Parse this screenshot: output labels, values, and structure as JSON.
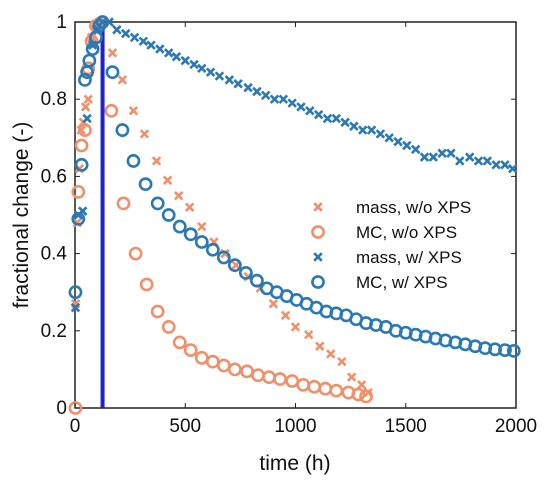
{
  "chart_data": {
    "type": "scatter",
    "title": "",
    "xlabel": "time (h)",
    "ylabel": "fractional change (-)",
    "xlim": [
      0,
      2000
    ],
    "ylim": [
      0,
      1
    ],
    "xticks": [
      0,
      500,
      1000,
      1500,
      2000
    ],
    "yticks": [
      0,
      0.2,
      0.4,
      0.6,
      0.8,
      1
    ],
    "xtick_labels": [
      "0",
      "500",
      "1000",
      "1500",
      "2000"
    ],
    "ytick_labels": [
      "0",
      "0.2",
      "0.4",
      "0.6",
      "0.8",
      "1"
    ],
    "grid": false,
    "legend_position": "center-right",
    "vertical_line": {
      "x": 125,
      "color": "#1f1fd6"
    },
    "series": [
      {
        "name": "mass, w/o XPS",
        "marker": "x",
        "color": "#f0906a",
        "points": [
          [
            3,
            0.27
          ],
          [
            10,
            0.48
          ],
          [
            20,
            0.62
          ],
          [
            28,
            0.72
          ],
          [
            38,
            0.74
          ],
          [
            48,
            0.78
          ],
          [
            60,
            0.8
          ],
          [
            75,
            0.96
          ],
          [
            92,
            0.98
          ],
          [
            110,
            1.0
          ],
          [
            170,
            0.92
          ],
          [
            215,
            0.85
          ],
          [
            265,
            0.77
          ],
          [
            315,
            0.71
          ],
          [
            370,
            0.64
          ],
          [
            420,
            0.59
          ],
          [
            470,
            0.55
          ],
          [
            520,
            0.52
          ],
          [
            575,
            0.47
          ],
          [
            630,
            0.43
          ],
          [
            680,
            0.4
          ],
          [
            730,
            0.37
          ],
          [
            785,
            0.34
          ],
          [
            840,
            0.31
          ],
          [
            900,
            0.27
          ],
          [
            955,
            0.24
          ],
          [
            1000,
            0.21
          ],
          [
            1060,
            0.19
          ],
          [
            1110,
            0.16
          ],
          [
            1160,
            0.14
          ],
          [
            1210,
            0.12
          ],
          [
            1255,
            0.08
          ],
          [
            1300,
            0.06
          ],
          [
            1330,
            0.04
          ]
        ]
      },
      {
        "name": "MC, w/o XPS",
        "marker": "o",
        "color": "#f0906a",
        "points": [
          [
            2,
            0.0
          ],
          [
            15,
            0.56
          ],
          [
            30,
            0.68
          ],
          [
            45,
            0.72
          ],
          [
            60,
            0.88
          ],
          [
            75,
            0.95
          ],
          [
            95,
            0.99
          ],
          [
            165,
            0.77
          ],
          [
            220,
            0.53
          ],
          [
            275,
            0.4
          ],
          [
            325,
            0.32
          ],
          [
            375,
            0.25
          ],
          [
            425,
            0.21
          ],
          [
            475,
            0.17
          ],
          [
            525,
            0.15
          ],
          [
            575,
            0.13
          ],
          [
            625,
            0.12
          ],
          [
            675,
            0.11
          ],
          [
            725,
            0.1
          ],
          [
            780,
            0.095
          ],
          [
            830,
            0.085
          ],
          [
            880,
            0.08
          ],
          [
            930,
            0.075
          ],
          [
            985,
            0.07
          ],
          [
            1035,
            0.06
          ],
          [
            1085,
            0.055
          ],
          [
            1135,
            0.05
          ],
          [
            1185,
            0.045
          ],
          [
            1240,
            0.04
          ],
          [
            1285,
            0.035
          ],
          [
            1320,
            0.03
          ]
        ]
      },
      {
        "name": "mass, w/ XPS",
        "marker": "x",
        "color": "#2a78b5",
        "points": [
          [
            2,
            0.26
          ],
          [
            15,
            0.5
          ],
          [
            35,
            0.51
          ],
          [
            55,
            0.75
          ],
          [
            80,
            0.94
          ],
          [
            105,
            0.98
          ],
          [
            125,
            1.0
          ],
          [
            155,
            1.0
          ],
          [
            190,
            0.98
          ],
          [
            230,
            0.97
          ],
          [
            270,
            0.96
          ],
          [
            310,
            0.95
          ],
          [
            345,
            0.94
          ],
          [
            385,
            0.93
          ],
          [
            425,
            0.92
          ],
          [
            460,
            0.91
          ],
          [
            500,
            0.9
          ],
          [
            540,
            0.89
          ],
          [
            575,
            0.88
          ],
          [
            615,
            0.87
          ],
          [
            655,
            0.86
          ],
          [
            700,
            0.85
          ],
          [
            740,
            0.84
          ],
          [
            785,
            0.83
          ],
          [
            825,
            0.82
          ],
          [
            865,
            0.81
          ],
          [
            905,
            0.8
          ],
          [
            945,
            0.8
          ],
          [
            985,
            0.79
          ],
          [
            1025,
            0.78
          ],
          [
            1065,
            0.77
          ],
          [
            1105,
            0.76
          ],
          [
            1145,
            0.75
          ],
          [
            1185,
            0.75
          ],
          [
            1225,
            0.74
          ],
          [
            1265,
            0.73
          ],
          [
            1305,
            0.72
          ],
          [
            1345,
            0.72
          ],
          [
            1385,
            0.71
          ],
          [
            1425,
            0.7
          ],
          [
            1465,
            0.69
          ],
          [
            1505,
            0.68
          ],
          [
            1545,
            0.67
          ],
          [
            1585,
            0.65
          ],
          [
            1625,
            0.65
          ],
          [
            1665,
            0.66
          ],
          [
            1705,
            0.66
          ],
          [
            1745,
            0.64
          ],
          [
            1790,
            0.65
          ],
          [
            1830,
            0.64
          ],
          [
            1870,
            0.64
          ],
          [
            1910,
            0.63
          ],
          [
            1950,
            0.63
          ],
          [
            1985,
            0.62
          ]
        ]
      },
      {
        "name": "MC, w/ XPS",
        "marker": "o",
        "color": "#2a78b5",
        "points": [
          [
            2,
            0.3
          ],
          [
            15,
            0.49
          ],
          [
            30,
            0.63
          ],
          [
            45,
            0.85
          ],
          [
            55,
            0.87
          ],
          [
            65,
            0.9
          ],
          [
            80,
            0.93
          ],
          [
            95,
            0.96
          ],
          [
            110,
            0.99
          ],
          [
            125,
            1.0
          ],
          [
            170,
            0.87
          ],
          [
            215,
            0.72
          ],
          [
            265,
            0.64
          ],
          [
            320,
            0.58
          ],
          [
            375,
            0.53
          ],
          [
            425,
            0.5
          ],
          [
            475,
            0.47
          ],
          [
            525,
            0.45
          ],
          [
            575,
            0.43
          ],
          [
            625,
            0.41
          ],
          [
            675,
            0.39
          ],
          [
            725,
            0.37
          ],
          [
            775,
            0.35
          ],
          [
            825,
            0.33
          ],
          [
            870,
            0.31
          ],
          [
            915,
            0.3
          ],
          [
            960,
            0.29
          ],
          [
            1005,
            0.28
          ],
          [
            1050,
            0.27
          ],
          [
            1095,
            0.26
          ],
          [
            1140,
            0.25
          ],
          [
            1185,
            0.245
          ],
          [
            1230,
            0.24
          ],
          [
            1275,
            0.23
          ],
          [
            1320,
            0.22
          ],
          [
            1365,
            0.215
          ],
          [
            1410,
            0.21
          ],
          [
            1455,
            0.2
          ],
          [
            1500,
            0.195
          ],
          [
            1545,
            0.19
          ],
          [
            1590,
            0.185
          ],
          [
            1635,
            0.18
          ],
          [
            1680,
            0.175
          ],
          [
            1725,
            0.17
          ],
          [
            1770,
            0.165
          ],
          [
            1815,
            0.16
          ],
          [
            1860,
            0.155
          ],
          [
            1905,
            0.152
          ],
          [
            1950,
            0.15
          ],
          [
            1990,
            0.148
          ]
        ]
      }
    ]
  }
}
